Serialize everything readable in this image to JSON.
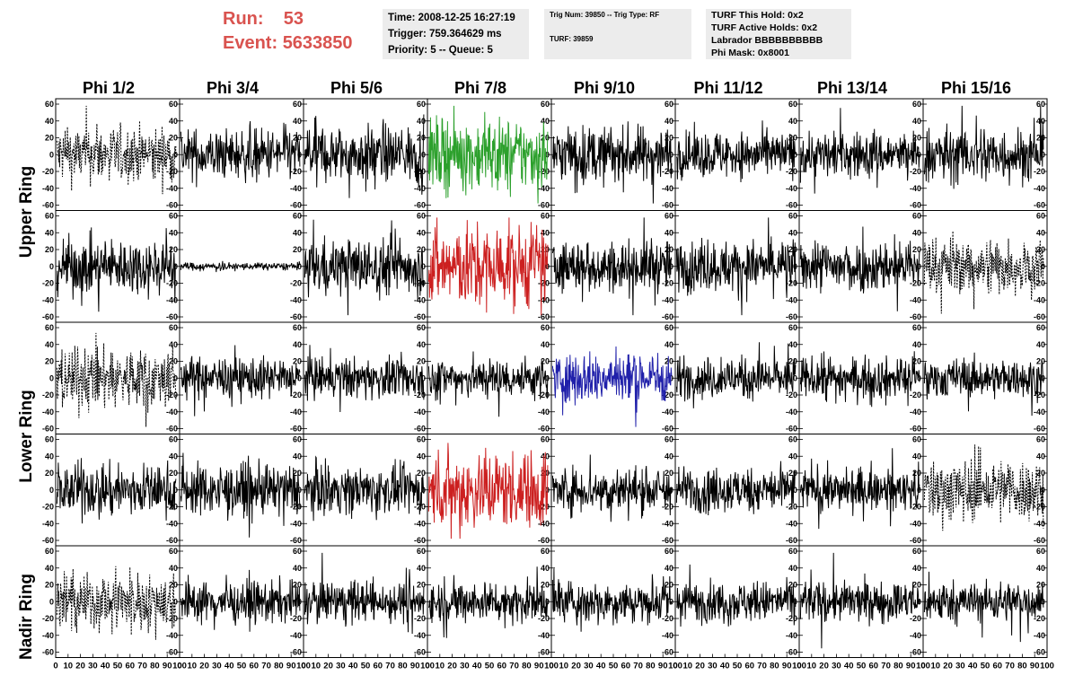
{
  "header": {
    "run_label": "Run:",
    "run_value": "53",
    "event_label": "Event:",
    "event_value": "5633850"
  },
  "info1": {
    "time": "Time: 2008-12-25 16:27:19",
    "trigger": "Trigger: 759.364629 ms",
    "priority": "Priority: 5 -- Queue: 5"
  },
  "info2": {
    "trig": "Trig Num: 39850 -- Trig Type: RF",
    "turf": "TURF: 39859"
  },
  "info3": {
    "hold": "TURF This Hold: 0x2",
    "active": "TURF Active Holds: 0x2",
    "labrador": "Labrador BBBBBBBBBB",
    "mask": "Phi Mask: 0x8001"
  },
  "columns": [
    "Phi 1/2",
    "Phi 3/4",
    "Phi 5/6",
    "Phi 7/8",
    "Phi 9/10",
    "Phi 11/12",
    "Phi 13/14",
    "Phi 15/16"
  ],
  "row_labels": {
    "upper": "Upper Ring",
    "lower": "Lower Ring",
    "nadir": "Nadir Ring"
  },
  "colors": {
    "red": "#d9534f",
    "green": "#2ca02c",
    "trace_red": "#cc2020",
    "trace_blue": "#2020aa",
    "background": "#ffffff",
    "info_bg": "#ececec"
  },
  "chart_data": {
    "type": "line",
    "grid": false,
    "xlim": [
      0,
      100
    ],
    "ylim": [
      -60,
      60
    ],
    "x_ticks": [
      0,
      10,
      20,
      30,
      40,
      50,
      60,
      70,
      80,
      90,
      100
    ],
    "x_tick_labels": [
      "0",
      "10",
      "20",
      "30",
      "40",
      "50",
      "60",
      "70",
      "80",
      "90",
      "100"
    ],
    "y_ticks": [
      -60,
      -40,
      -20,
      0,
      20,
      40,
      60
    ],
    "y_tick_labels": [
      "-60",
      "-40",
      "-20",
      "0",
      "20",
      "40",
      "60"
    ],
    "rows": 5,
    "cols": 8,
    "panel_styles": [
      [
        "dashed",
        "black",
        "black",
        "green",
        "black",
        "black",
        "black",
        "black"
      ],
      [
        "black",
        "flat",
        "black",
        "red",
        "black",
        "black",
        "black",
        "dashed"
      ],
      [
        "dashed",
        "black",
        "black",
        "black",
        "blue",
        "black",
        "black",
        "black"
      ],
      [
        "black",
        "black",
        "black",
        "red",
        "black",
        "black",
        "black",
        "dashed"
      ],
      [
        "dashed",
        "black",
        "black",
        "black",
        "black",
        "black",
        "black",
        "black"
      ]
    ],
    "panel_amplitudes": [
      [
        22,
        20,
        22,
        28,
        22,
        18,
        18,
        22
      ],
      [
        22,
        3,
        22,
        32,
        20,
        20,
        20,
        22
      ],
      [
        24,
        16,
        16,
        16,
        20,
        16,
        16,
        15
      ],
      [
        20,
        20,
        18,
        30,
        18,
        18,
        16,
        25
      ],
      [
        22,
        16,
        16,
        16,
        16,
        16,
        16,
        16
      ]
    ]
  }
}
